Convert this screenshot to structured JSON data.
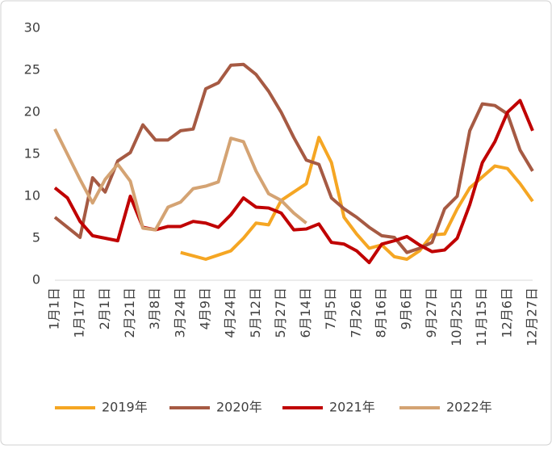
{
  "chart_data": {
    "type": "line",
    "categories": [
      "1月1日",
      null,
      "1月17日",
      null,
      "2月1日",
      null,
      "2月21日",
      null,
      "3月8日",
      null,
      "3月24日",
      null,
      "4月9日",
      null,
      "4月24日",
      null,
      "5月12日",
      null,
      "5月27日",
      null,
      "6月14日",
      null,
      "7月5日",
      null,
      "7月26日",
      null,
      "8月16日",
      null,
      "9月6日",
      null,
      "9月27日",
      null,
      "10月25日",
      null,
      "11月15日",
      null,
      "12月6日",
      null,
      "12月27日"
    ],
    "series": [
      {
        "name": "2019年",
        "color": "#f5a623",
        "values": [
          null,
          null,
          null,
          null,
          null,
          null,
          null,
          null,
          null,
          null,
          3.3,
          2.9,
          2.5,
          3.0,
          3.5,
          5.0,
          6.8,
          6.6,
          9.5,
          10.5,
          11.5,
          17.0,
          14.0,
          7.5,
          5.5,
          3.8,
          4.2,
          2.8,
          2.5,
          3.5,
          5.4,
          5.5,
          8.5,
          11.0,
          12.3,
          13.6,
          13.3,
          11.5,
          9.4
        ]
      },
      {
        "name": "2020年",
        "color": "#a65a43",
        "values": [
          7.5,
          6.3,
          5.1,
          12.2,
          10.5,
          14.2,
          15.2,
          18.5,
          16.7,
          16.7,
          17.8,
          18.0,
          22.8,
          23.5,
          25.6,
          25.7,
          24.5,
          22.5,
          20.0,
          17.0,
          14.3,
          13.8,
          9.8,
          8.5,
          7.5,
          6.3,
          5.3,
          5.1,
          3.3,
          3.8,
          4.5,
          8.5,
          10.0,
          17.8,
          21.0,
          20.8,
          19.8,
          15.5,
          13.0
        ]
      },
      {
        "name": "2021年",
        "color": "#c00000",
        "values": [
          11.0,
          9.8,
          7.0,
          5.3,
          5.0,
          4.7,
          10.0,
          6.3,
          6.0,
          6.4,
          6.4,
          7.0,
          6.8,
          6.3,
          7.8,
          9.8,
          8.7,
          8.6,
          8.0,
          6.0,
          6.1,
          6.7,
          4.5,
          4.3,
          3.5,
          2.1,
          4.3,
          4.7,
          5.2,
          4.2,
          3.4,
          3.6,
          5.0,
          9.0,
          14.0,
          16.5,
          20.0,
          21.4,
          17.8
        ]
      },
      {
        "name": "2022年",
        "color": "#d4a373",
        "values": [
          18.0,
          15.0,
          12.0,
          9.2,
          12.0,
          13.8,
          11.8,
          6.2,
          6.0,
          8.7,
          9.3,
          10.9,
          11.2,
          11.7,
          16.9,
          16.5,
          13.0,
          10.3,
          9.5,
          8.0,
          6.8,
          null,
          null,
          null,
          null,
          null,
          null,
          null,
          null,
          null,
          null,
          null,
          null,
          null,
          null,
          null,
          null,
          null,
          null
        ]
      }
    ],
    "ylim": [
      0,
      30
    ],
    "yticks": [
      0,
      5,
      10,
      15,
      20,
      25,
      30
    ],
    "legend": "bottom"
  }
}
